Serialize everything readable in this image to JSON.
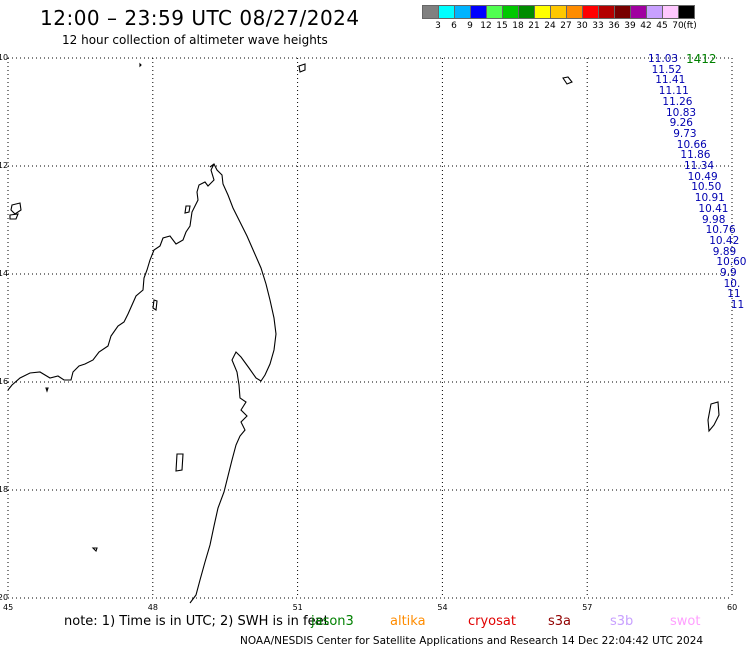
{
  "header": {
    "title": "12:00 – 23:59 UTC 08/27/2024",
    "subtitle": "12 hour collection of altimeter wave heights"
  },
  "colorbar": {
    "colors": [
      "#808080",
      "#00ffff",
      "#00b4ff",
      "#0000ff",
      "#50ff50",
      "#00c800",
      "#008c00",
      "#ffff00",
      "#ffc800",
      "#ff8c00",
      "#ff0000",
      "#b40000",
      "#780000",
      "#a000a0",
      "#c8a0ff",
      "#ffc8ff",
      "#000000"
    ],
    "labels": [
      "3",
      "6",
      "9",
      "12",
      "15",
      "18",
      "21",
      "24",
      "27",
      "30",
      "33",
      "36",
      "39",
      "42",
      "45",
      "70",
      "(ft)"
    ]
  },
  "map": {
    "lat_labels": [
      "-10",
      "-12",
      "-14",
      "-16",
      "-18",
      "-20"
    ],
    "lon_labels": [
      "45",
      "48",
      "51",
      "54",
      "57",
      "60"
    ],
    "lat_range": [
      -20,
      -10
    ],
    "lon_range": [
      45,
      60
    ]
  },
  "track": {
    "pass_id": "1412",
    "pass_color": "#008000",
    "swh_values": [
      "11.03",
      "11.52",
      "11.41",
      "11.11",
      "11.26",
      "10.83",
      "9.26",
      "9.73",
      "10.66",
      "11.86",
      "11.34",
      "10.49",
      "10.50",
      "10.91",
      "10.41",
      "9.98",
      "10.76",
      "10.42",
      "9.89",
      "10.60",
      "9.9",
      "10.",
      "11",
      "11"
    ]
  },
  "footer": {
    "note": "note:  1) Time is in UTC;  2) SWH is in feet",
    "satellites": [
      {
        "name": "jason3",
        "color": "#008000"
      },
      {
        "name": "altika",
        "color": "#ff8c00"
      },
      {
        "name": "cryosat",
        "color": "#e00000"
      },
      {
        "name": "s3a",
        "color": "#900000"
      },
      {
        "name": "s3b",
        "color": "#c8a0ff"
      },
      {
        "name": "swot",
        "color": "#ffa0ff"
      }
    ],
    "credit": "NOAA/NESDIS Center for Satellite Applications and Research    14 Dec 22:04:42 UTC 2024"
  }
}
